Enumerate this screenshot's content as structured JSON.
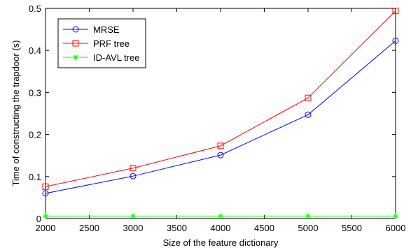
{
  "chart_data": {
    "type": "line",
    "title": "",
    "xlabel": "Size of the feature dictionary",
    "ylabel": "Time of constructing the trapdoor (s)",
    "x": [
      2000,
      3000,
      4000,
      5000,
      6000
    ],
    "xlim": [
      2000,
      6000
    ],
    "ylim": [
      0,
      0.5
    ],
    "xticks": [
      "2000",
      "2500",
      "3000",
      "3500",
      "4000",
      "4500",
      "5000",
      "5500",
      "6000"
    ],
    "xtick_values": [
      2000,
      2500,
      3000,
      3500,
      4000,
      4500,
      5000,
      5500,
      6000
    ],
    "yticks": [
      "0",
      "0.1",
      "0.2",
      "0.3",
      "0.4",
      "0.5"
    ],
    "ytick_values": [
      0,
      0.1,
      0.2,
      0.3,
      0.4,
      0.5
    ],
    "grid": false,
    "legend_position": "top-left",
    "series": [
      {
        "name": "MRSE",
        "values": [
          0.06,
          0.101,
          0.151,
          0.247,
          0.423
        ],
        "color": "#0000ff",
        "marker": "circle"
      },
      {
        "name": "PRF tree",
        "values": [
          0.076,
          0.12,
          0.173,
          0.287,
          0.494
        ],
        "color": "#ff0000",
        "marker": "square"
      },
      {
        "name": "ID-AVL tree",
        "values": [
          0.006,
          0.006,
          0.006,
          0.006,
          0.006
        ],
        "color": "#00ff00",
        "marker": "asterisk"
      }
    ]
  }
}
